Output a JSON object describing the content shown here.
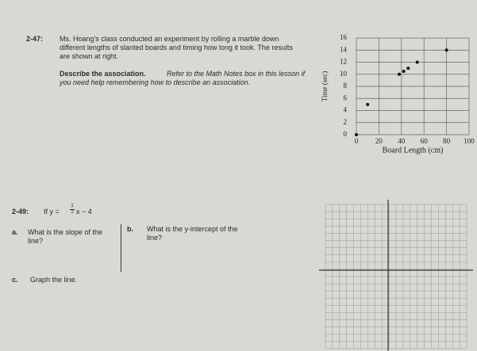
{
  "problem_2_47": {
    "number": "2-47:",
    "text": "Ms. Hoang's class conducted an experiment by rolling a marble down different lengths of slanted boards and timing how long it took. The results are shown at right.",
    "prompt": "Describe the association.",
    "hint": "Refer to the Math Notes box in this lesson if you need help remembering how to describe an association."
  },
  "problem_2_49": {
    "number": "2-49:",
    "equation_start": "If y =",
    "fraction_numerator": "1",
    "fraction_denominator": "2",
    "equation_end": "x − 4",
    "parts": [
      {
        "letter": "a.",
        "question": "What is the slope of the line?"
      },
      {
        "letter": "b.",
        "question": "What is the y-intercept of the line?"
      },
      {
        "letter": "c.",
        "question": "Graph the line."
      }
    ]
  },
  "chart_data": {
    "type": "scatter",
    "x_label": "Board Length (cm)",
    "y_label": "Time (sec)",
    "x": [
      0,
      10,
      38,
      42,
      46,
      54,
      80
    ],
    "y": [
      0,
      5,
      10,
      10.5,
      11,
      12,
      14
    ],
    "color": "#111111",
    "xlim": [
      0,
      100
    ],
    "ylim": [
      0,
      16
    ],
    "xticks": [
      0,
      20,
      40,
      60,
      80,
      100
    ],
    "yticks": [
      0,
      2,
      4,
      6,
      8,
      10,
      12,
      14,
      16
    ],
    "grid": true
  }
}
